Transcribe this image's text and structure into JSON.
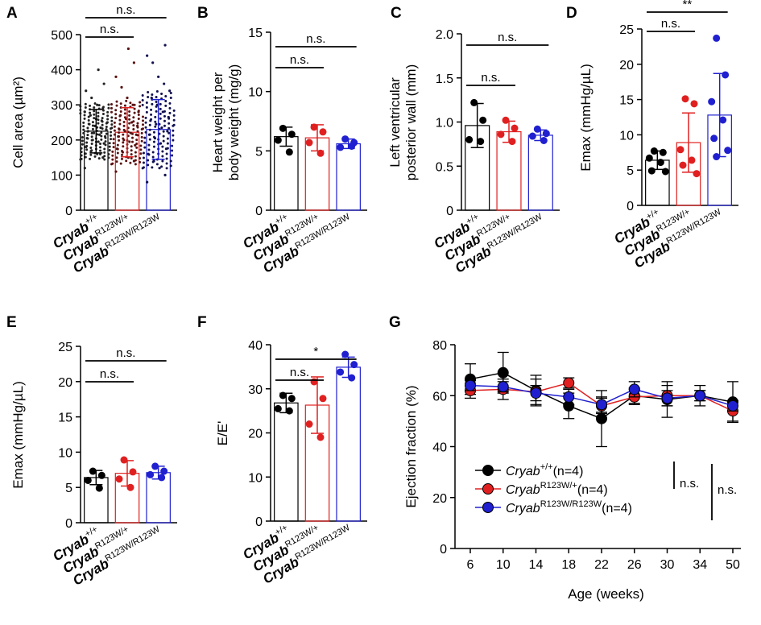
{
  "groups": [
    "Cryab",
    "Cryab",
    "Cryab"
  ],
  "group_sups": [
    "+/+",
    "R123W/+",
    "R123W/R123W"
  ],
  "group_colors": [
    "#000000",
    "#e02020",
    "#2020d0"
  ],
  "chart_data": [
    {
      "id": "A",
      "type": "bar",
      "title": "A",
      "ylabel": "Cell area (µm²)",
      "ylim": [
        0,
        500
      ],
      "yticks": [
        "0",
        "100",
        "200",
        "300",
        "400",
        "500"
      ],
      "means": [
        225,
        222,
        230
      ],
      "sd": [
        62,
        70,
        85
      ],
      "dense": true,
      "points": [
        [
          120,
          150,
          160,
          170,
          180,
          190,
          195,
          200,
          205,
          210,
          215,
          220,
          225,
          230,
          235,
          240,
          245,
          250,
          255,
          260,
          270,
          280,
          290,
          300,
          320,
          340,
          360,
          400
        ],
        [
          110,
          140,
          150,
          165,
          175,
          185,
          195,
          200,
          210,
          215,
          220,
          225,
          230,
          240,
          250,
          260,
          270,
          280,
          300,
          320,
          350,
          380,
          420,
          460
        ],
        [
          80,
          100,
          120,
          140,
          160,
          175,
          190,
          205,
          215,
          225,
          235,
          245,
          255,
          265,
          280,
          300,
          320,
          340,
          360,
          380,
          420,
          440,
          470
        ]
      ],
      "sig": [
        {
          "from": 0,
          "to": 1,
          "label": "n.s."
        },
        {
          "from": 0,
          "to": 2,
          "label": "n.s."
        }
      ]
    },
    {
      "id": "B",
      "type": "bar",
      "title": "B",
      "ylabel": "Heart weight per body weight (mg/g)",
      "ylabel_lines": [
        "Heart weight per",
        "body weight (mg/g)"
      ],
      "ylim": [
        0,
        15
      ],
      "yticks": [
        "0",
        "5",
        "10",
        "15"
      ],
      "means": [
        6.2,
        6.1,
        5.6
      ],
      "sd": [
        0.8,
        1.1,
        0.4
      ],
      "points": [
        [
          6.9,
          6.4,
          5.9,
          4.9
        ],
        [
          7.0,
          6.6,
          5.7,
          4.8
        ],
        [
          6.0,
          5.7,
          5.3,
          5.4
        ]
      ],
      "sig": [
        {
          "from": 0,
          "to": 1,
          "label": "n.s."
        },
        {
          "from": 0,
          "to": 2,
          "label": "n.s."
        }
      ]
    },
    {
      "id": "C",
      "type": "bar",
      "title": "C",
      "ylabel": "Left ventricular posterior wall (mm)",
      "ylabel_lines": [
        "Left ventricular",
        "posterior wall (mm)"
      ],
      "ylim": [
        0,
        2.0
      ],
      "yticks": [
        "0",
        "0.5",
        "1.0",
        "1.5",
        "2.0"
      ],
      "means": [
        0.96,
        0.89,
        0.85
      ],
      "sd": [
        0.25,
        0.12,
        0.06
      ],
      "points": [
        [
          1.22,
          1.02,
          0.8,
          0.78
        ],
        [
          1.02,
          0.93,
          0.86,
          0.78
        ],
        [
          0.92,
          0.87,
          0.84,
          0.79
        ]
      ],
      "sig": [
        {
          "from": 0,
          "to": 1,
          "label": "n.s."
        },
        {
          "from": 0,
          "to": 2,
          "label": "n.s."
        }
      ]
    },
    {
      "id": "D",
      "type": "bar",
      "title": "D",
      "ylabel": "Emax (mmHg/µL)",
      "ylim": [
        0,
        25
      ],
      "yticks": [
        "0",
        "5",
        "10",
        "15",
        "20",
        "25"
      ],
      "means": [
        6.4,
        8.9,
        12.8
      ],
      "sd": [
        1.3,
        4.2,
        5.9
      ],
      "points": [
        [
          7.7,
          7.5,
          6.7,
          6.1,
          4.9,
          4.8
        ],
        [
          15.1,
          14.4,
          7.9,
          6.4,
          5.7,
          4.5
        ],
        [
          23.7,
          18.5,
          14.7,
          12.1,
          9.5,
          7.8,
          6.9
        ]
      ],
      "sig": [
        {
          "from": 0,
          "to": 1,
          "label": "n.s."
        },
        {
          "from": 0,
          "to": 2,
          "label": "**"
        }
      ]
    },
    {
      "id": "E",
      "type": "bar",
      "title": "E",
      "ylabel": "Emax (mmHg/µL)",
      "ylim": [
        0,
        25
      ],
      "yticks": [
        "0",
        "5",
        "10",
        "15",
        "20",
        "25"
      ],
      "means": [
        6.4,
        7.0,
        7.1
      ],
      "sd": [
        1.0,
        1.8,
        0.9
      ],
      "points": [
        [
          7.3,
          6.7,
          6.0,
          4.9
        ],
        [
          8.9,
          7.2,
          6.2,
          5.0
        ],
        [
          8.0,
          7.3,
          6.8,
          6.4
        ]
      ],
      "sig": [
        {
          "from": 0,
          "to": 1,
          "label": "n.s."
        },
        {
          "from": 0,
          "to": 2,
          "label": "n.s."
        }
      ]
    },
    {
      "id": "F",
      "type": "bar",
      "title": "F",
      "ylabel": "E/E'",
      "ylim": [
        0,
        40
      ],
      "yticks": [
        "0",
        "10",
        "20",
        "30",
        "40"
      ],
      "means": [
        26.8,
        26.3,
        34.9
      ],
      "sd": [
        2.2,
        6.4,
        2.3
      ],
      "points": [
        [
          28.5,
          27.8,
          25.5,
          25.0
        ],
        [
          31.6,
          27.8,
          22.0,
          19.0
        ],
        [
          37.8,
          35.5,
          33.8,
          32.5
        ]
      ],
      "sig": [
        {
          "from": 0,
          "to": 1,
          "label": "n.s."
        },
        {
          "from": 0,
          "to": 2,
          "label": "*"
        }
      ]
    },
    {
      "id": "G",
      "type": "line",
      "title": "G",
      "ylabel": "Ejection fraction (%)",
      "xlabel": "Age (weeks)",
      "ylim": [
        0,
        80
      ],
      "yticks": [
        "0",
        "20",
        "40",
        "60",
        "80"
      ],
      "x": [
        "6",
        "10",
        "14",
        "18",
        "22",
        "26",
        "30",
        "34",
        "50"
      ],
      "series": [
        {
          "name": "Cryab",
          "sup": "+/+",
          "n": "(n=4)",
          "color": "#000000",
          "values": [
            66.5,
            69.0,
            62.0,
            56.0,
            51.0,
            60.0,
            58.5,
            60.0,
            57.5
          ],
          "sd": [
            6.0,
            8.0,
            6.0,
            5.0,
            11.0,
            3.0,
            7.0,
            4.0,
            8.0
          ]
        },
        {
          "name": "Cryab",
          "sup": "R123W/+",
          "n": "(n=4)",
          "color": "#e02020",
          "values": [
            62.0,
            62.5,
            61.5,
            65.0,
            56.0,
            59.5,
            60.0,
            60.0,
            54.0
          ],
          "sd": [
            3.0,
            4.0,
            5.0,
            2.0,
            3.0,
            3.0,
            4.0,
            2.0,
            4.0
          ]
        },
        {
          "name": "Cryab",
          "sup": "R123W/R123W",
          "n": "(n=4)",
          "color": "#2020d0",
          "values": [
            64.0,
            63.5,
            61.0,
            59.5,
            56.5,
            62.5,
            59.0,
            60.0,
            56.0
          ],
          "sd": [
            2.0,
            2.0,
            3.0,
            3.0,
            3.0,
            3.0,
            3.0,
            2.0,
            2.0
          ]
        }
      ],
      "sig": [
        "n.s.",
        "n.s."
      ]
    }
  ]
}
